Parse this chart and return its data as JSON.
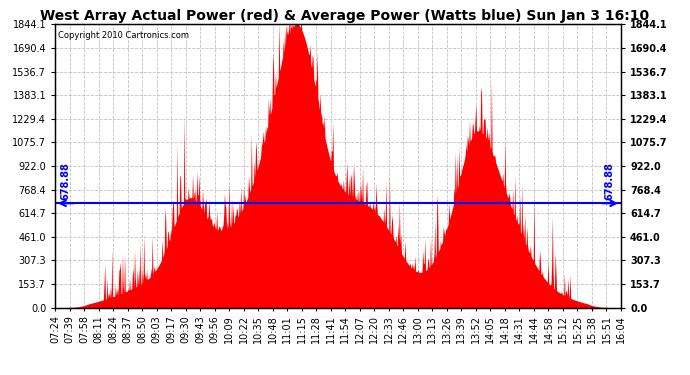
{
  "title": "West Array Actual Power (red) & Average Power (Watts blue) Sun Jan 3 16:10",
  "copyright": "Copyright 2010 Cartronics.com",
  "average_power": 678.88,
  "y_max": 1844.1,
  "y_ticks": [
    0.0,
    153.7,
    307.3,
    461.0,
    614.7,
    768.4,
    922.0,
    1075.7,
    1229.4,
    1383.1,
    1536.7,
    1690.4,
    1844.1
  ],
  "x_labels": [
    "07:24",
    "07:39",
    "07:58",
    "08:11",
    "08:24",
    "08:37",
    "08:50",
    "09:03",
    "09:17",
    "09:30",
    "09:43",
    "09:56",
    "10:09",
    "10:22",
    "10:35",
    "10:48",
    "11:01",
    "11:15",
    "11:28",
    "11:41",
    "11:54",
    "12:07",
    "12:20",
    "12:33",
    "12:46",
    "13:00",
    "13:13",
    "13:26",
    "13:39",
    "13:52",
    "14:05",
    "14:18",
    "14:31",
    "14:44",
    "14:58",
    "15:12",
    "15:25",
    "15:38",
    "15:51",
    "16:04"
  ],
  "background_color": "#ffffff",
  "fill_color": "#ff0000",
  "line_color": "#0000ff",
  "grid_color": "#bbbbbb",
  "title_fontsize": 10,
  "label_fontsize": 7,
  "avg_label": "678.88"
}
